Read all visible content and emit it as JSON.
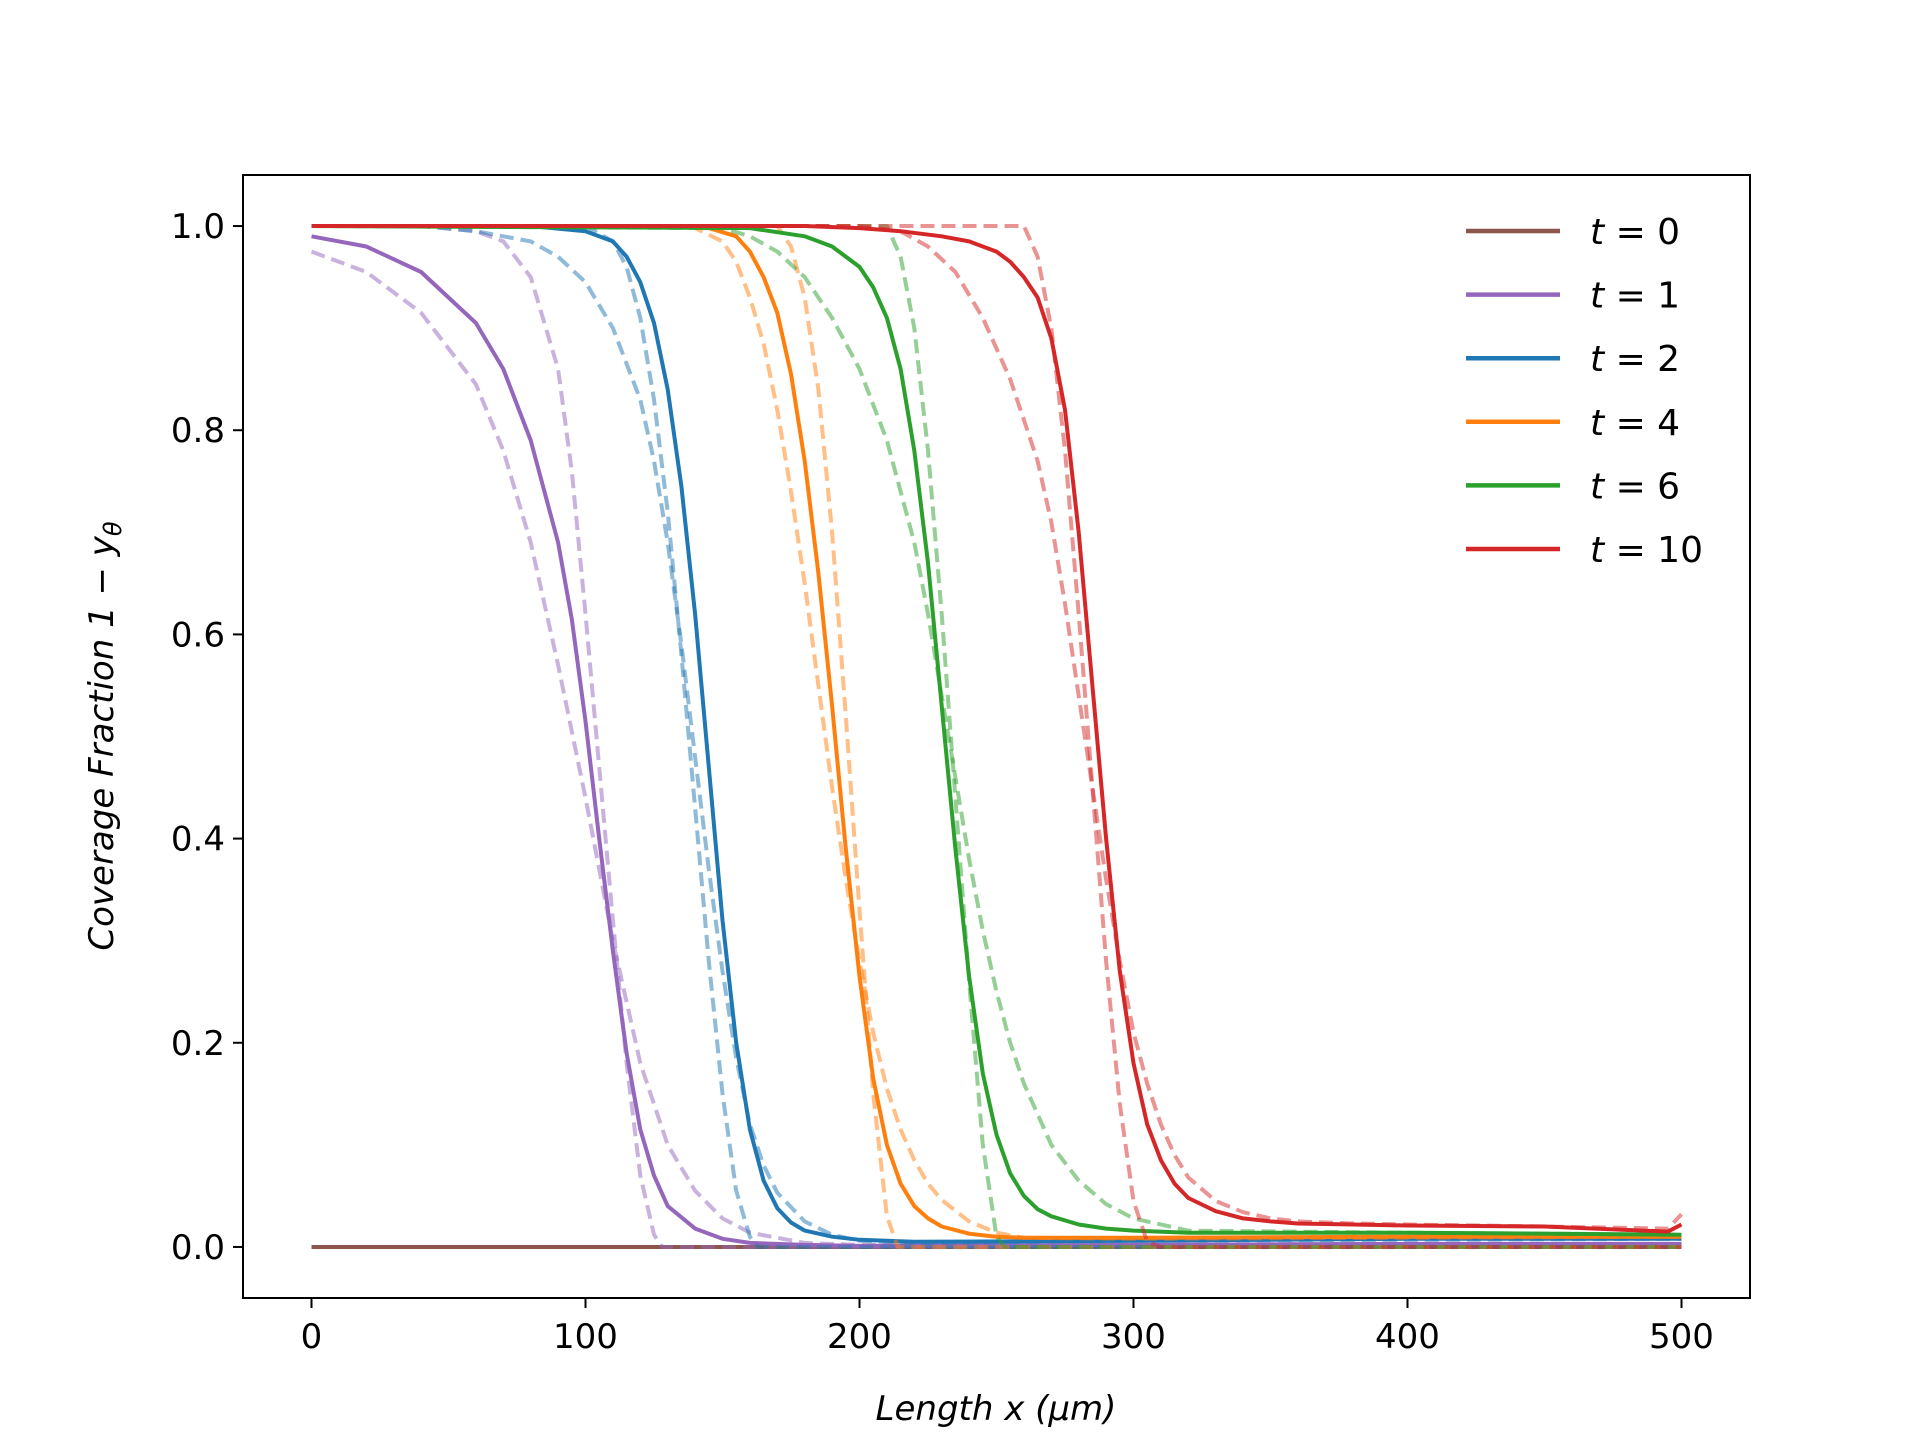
{
  "chart_data": {
    "type": "line",
    "title": "",
    "xlabel": "Length x (μm)",
    "ylabel": "Coverage Fraction 1  − y",
    "ylabel_subscript": "θ",
    "xlim": [
      -25,
      525
    ],
    "ylim": [
      -0.05,
      1.05
    ],
    "xticks": [
      0,
      100,
      200,
      300,
      400,
      500
    ],
    "xtick_labels": [
      "0",
      "100",
      "200",
      "300",
      "400",
      "500"
    ],
    "yticks": [
      0.0,
      0.2,
      0.4,
      0.6,
      0.8,
      1.0
    ],
    "ytick_labels": [
      "0.0",
      "0.2",
      "0.4",
      "0.6",
      "0.8",
      "1.0"
    ],
    "grid": false,
    "legend_position": "top-right",
    "series": [
      {
        "name": "t = 0",
        "var": "t",
        "eq": " = ",
        "val": "0",
        "color": "#8c564b",
        "solid": {
          "x": [
            0,
            500
          ],
          "y": [
            0,
            0
          ]
        }
      },
      {
        "name": "t = 1",
        "var": "t",
        "eq": " = ",
        "val": "1",
        "color": "#9467bd",
        "solid": {
          "x": [
            0,
            20,
            40,
            60,
            70,
            80,
            90,
            95,
            100,
            105,
            110,
            115,
            120,
            125,
            130,
            140,
            150,
            160,
            180,
            200,
            300,
            400,
            500
          ],
          "y": [
            0.99,
            0.98,
            0.955,
            0.905,
            0.86,
            0.79,
            0.69,
            0.615,
            0.515,
            0.4,
            0.29,
            0.19,
            0.115,
            0.07,
            0.04,
            0.018,
            0.008,
            0.004,
            0.002,
            0.001,
            0.002,
            0.003,
            0.003
          ]
        },
        "dashed": {
          "x": [
            0,
            20,
            40,
            60,
            70,
            80,
            90,
            100,
            110,
            120,
            130,
            140,
            150,
            160,
            180,
            200,
            300,
            400,
            500
          ],
          "y": [
            0.975,
            0.955,
            0.915,
            0.845,
            0.78,
            0.69,
            0.57,
            0.44,
            0.3,
            0.18,
            0.1,
            0.055,
            0.028,
            0.014,
            0.004,
            0.002,
            0.002,
            0.003,
            0.003
          ]
        },
        "dashed2": {
          "x": [
            0,
            40,
            60,
            70,
            80,
            90,
            95,
            100,
            105,
            110,
            115,
            120,
            125,
            128,
            135,
            200,
            500
          ],
          "y": [
            1.0,
            1.0,
            0.995,
            0.985,
            0.95,
            0.86,
            0.76,
            0.62,
            0.47,
            0.32,
            0.18,
            0.07,
            0.012,
            0.0,
            0.0,
            0.0,
            0.0
          ]
        }
      },
      {
        "name": "t = 2",
        "var": "t",
        "eq": " = ",
        "val": "2",
        "color": "#1f77b4",
        "solid": {
          "x": [
            0,
            80,
            100,
            110,
            115,
            120,
            125,
            130,
            135,
            140,
            145,
            150,
            155,
            160,
            165,
            170,
            175,
            180,
            190,
            200,
            220,
            300,
            400,
            500
          ],
          "y": [
            1.0,
            1.0,
            0.995,
            0.985,
            0.97,
            0.945,
            0.905,
            0.84,
            0.745,
            0.62,
            0.47,
            0.32,
            0.2,
            0.115,
            0.065,
            0.038,
            0.024,
            0.016,
            0.01,
            0.007,
            0.005,
            0.006,
            0.008,
            0.008
          ]
        },
        "dashed": {
          "x": [
            0,
            40,
            60,
            80,
            90,
            100,
            110,
            120,
            125,
            130,
            135,
            140,
            145,
            150,
            155,
            160,
            165,
            170,
            180,
            190,
            200,
            220,
            300,
            500
          ],
          "y": [
            1.0,
            1.0,
            0.995,
            0.985,
            0.97,
            0.945,
            0.9,
            0.83,
            0.77,
            0.69,
            0.59,
            0.48,
            0.37,
            0.27,
            0.185,
            0.12,
            0.08,
            0.053,
            0.025,
            0.012,
            0.006,
            0.004,
            0.006,
            0.008
          ]
        },
        "dashed2": {
          "x": [
            0,
            100,
            110,
            115,
            120,
            125,
            130,
            135,
            140,
            145,
            150,
            155,
            160,
            163,
            170,
            500
          ],
          "y": [
            1.0,
            1.0,
            0.985,
            0.96,
            0.91,
            0.83,
            0.72,
            0.58,
            0.43,
            0.28,
            0.15,
            0.055,
            0.01,
            0.0,
            0.0,
            0.0
          ]
        }
      },
      {
        "name": "t = 4",
        "var": "t",
        "eq": " = ",
        "val": "4",
        "color": "#ff7f0e",
        "solid": {
          "x": [
            0,
            130,
            145,
            155,
            160,
            165,
            170,
            175,
            180,
            185,
            190,
            195,
            200,
            205,
            210,
            215,
            220,
            225,
            230,
            240,
            250,
            260,
            300,
            400,
            500
          ],
          "y": [
            1.0,
            1.0,
            0.998,
            0.99,
            0.975,
            0.95,
            0.915,
            0.855,
            0.77,
            0.66,
            0.53,
            0.39,
            0.265,
            0.165,
            0.1,
            0.062,
            0.04,
            0.028,
            0.02,
            0.013,
            0.01,
            0.009,
            0.009,
            0.01,
            0.01
          ]
        },
        "dashed": {
          "x": [
            0,
            130,
            140,
            150,
            155,
            160,
            165,
            170,
            175,
            180,
            185,
            190,
            195,
            200,
            205,
            210,
            215,
            220,
            225,
            230,
            240,
            250,
            260,
            300,
            400,
            500
          ],
          "y": [
            1.0,
            1.0,
            0.998,
            0.985,
            0.965,
            0.93,
            0.885,
            0.82,
            0.74,
            0.65,
            0.55,
            0.45,
            0.36,
            0.28,
            0.21,
            0.155,
            0.115,
            0.085,
            0.062,
            0.046,
            0.025,
            0.014,
            0.009,
            0.008,
            0.009,
            0.01
          ]
        },
        "dashed2": {
          "x": [
            0,
            170,
            175,
            180,
            185,
            190,
            195,
            200,
            205,
            210,
            214,
            220,
            500
          ],
          "y": [
            1.0,
            1.0,
            0.98,
            0.93,
            0.84,
            0.7,
            0.52,
            0.33,
            0.15,
            0.03,
            0.0,
            0.0,
            0.0
          ]
        }
      },
      {
        "name": "t = 6",
        "var": "t",
        "eq": " = ",
        "val": "6",
        "color": "#2ca02c",
        "solid": {
          "x": [
            0,
            160,
            180,
            190,
            200,
            205,
            210,
            215,
            220,
            225,
            230,
            235,
            240,
            245,
            250,
            255,
            260,
            265,
            270,
            280,
            290,
            300,
            320,
            400,
            500
          ],
          "y": [
            1.0,
            0.998,
            0.99,
            0.98,
            0.96,
            0.94,
            0.91,
            0.86,
            0.78,
            0.67,
            0.53,
            0.39,
            0.265,
            0.17,
            0.11,
            0.072,
            0.05,
            0.037,
            0.03,
            0.022,
            0.018,
            0.016,
            0.014,
            0.014,
            0.012
          ]
        },
        "dashed": {
          "x": [
            0,
            150,
            160,
            170,
            180,
            190,
            200,
            210,
            220,
            225,
            230,
            235,
            240,
            245,
            250,
            255,
            260,
            265,
            270,
            280,
            290,
            300,
            320,
            400,
            500
          ],
          "y": [
            1.0,
            0.998,
            0.99,
            0.975,
            0.95,
            0.91,
            0.86,
            0.79,
            0.69,
            0.62,
            0.54,
            0.46,
            0.38,
            0.31,
            0.25,
            0.2,
            0.16,
            0.13,
            0.1,
            0.065,
            0.042,
            0.028,
            0.016,
            0.014,
            0.012
          ]
        },
        "dashed2": {
          "x": [
            0,
            210,
            215,
            220,
            225,
            230,
            235,
            240,
            245,
            250,
            253,
            260,
            500
          ],
          "y": [
            1.0,
            1.0,
            0.97,
            0.9,
            0.78,
            0.62,
            0.44,
            0.26,
            0.1,
            0.01,
            0.0,
            0.0,
            0.0
          ]
        }
      },
      {
        "name": "t = 10",
        "var": "t",
        "eq": " = ",
        "val": "10",
        "color": "#d62728",
        "solid": {
          "x": [
            0,
            180,
            200,
            215,
            230,
            240,
            250,
            255,
            260,
            265,
            270,
            275,
            280,
            285,
            290,
            295,
            300,
            305,
            310,
            315,
            320,
            330,
            340,
            350,
            360,
            380,
            400,
            450,
            495,
            500
          ],
          "y": [
            1.0,
            1.0,
            0.998,
            0.995,
            0.99,
            0.985,
            0.975,
            0.965,
            0.95,
            0.93,
            0.89,
            0.82,
            0.7,
            0.55,
            0.4,
            0.27,
            0.18,
            0.12,
            0.085,
            0.062,
            0.048,
            0.035,
            0.028,
            0.025,
            0.023,
            0.022,
            0.021,
            0.02,
            0.015,
            0.022
          ]
        },
        "dashed": {
          "x": [
            0,
            200,
            215,
            225,
            235,
            245,
            255,
            265,
            270,
            275,
            280,
            285,
            290,
            295,
            300,
            305,
            310,
            315,
            320,
            330,
            340,
            350,
            360,
            380,
            400,
            450,
            495,
            500
          ],
          "y": [
            1.0,
            1.0,
            0.995,
            0.98,
            0.955,
            0.91,
            0.85,
            0.77,
            0.71,
            0.63,
            0.54,
            0.45,
            0.36,
            0.28,
            0.21,
            0.16,
            0.12,
            0.09,
            0.068,
            0.045,
            0.034,
            0.028,
            0.025,
            0.023,
            0.022,
            0.02,
            0.018,
            0.032
          ]
        },
        "dashed2": {
          "x": [
            0,
            260,
            265,
            270,
            275,
            280,
            285,
            290,
            295,
            300,
            305,
            310,
            315,
            500
          ],
          "y": [
            1.0,
            1.0,
            0.97,
            0.9,
            0.78,
            0.62,
            0.45,
            0.28,
            0.14,
            0.045,
            0.005,
            0.0,
            0.0,
            0.0
          ]
        }
      }
    ]
  }
}
